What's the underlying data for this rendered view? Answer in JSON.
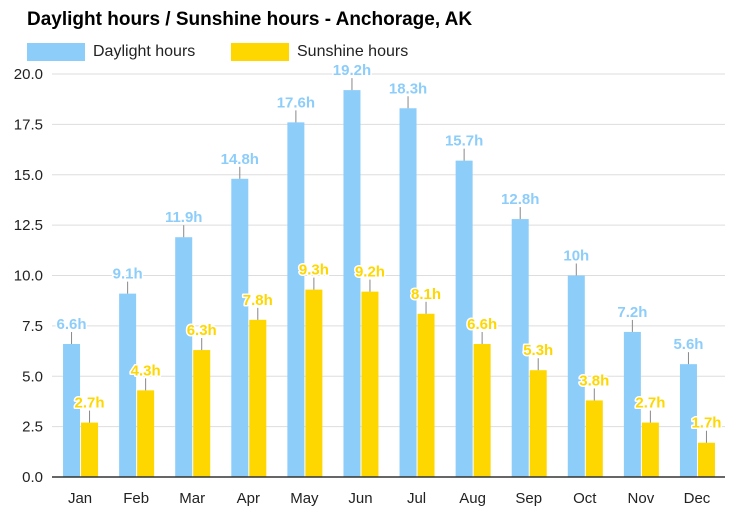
{
  "chart_data": {
    "type": "bar",
    "title": "Daylight hours / Sunshine hours - Anchorage, AK",
    "categories": [
      "Jan",
      "Feb",
      "Mar",
      "Apr",
      "May",
      "Jun",
      "Jul",
      "Aug",
      "Sep",
      "Oct",
      "Nov",
      "Dec"
    ],
    "series": [
      {
        "name": "Daylight hours",
        "color": "#8DCDFA",
        "values": [
          6.6,
          9.1,
          11.9,
          14.8,
          17.6,
          19.2,
          18.3,
          15.7,
          12.8,
          10,
          7.2,
          5.6
        ],
        "labels": [
          "6.6h",
          "9.1h",
          "11.9h",
          "14.8h",
          "17.6h",
          "19.2h",
          "18.3h",
          "15.7h",
          "12.8h",
          "10h",
          "7.2h",
          "5.6h"
        ]
      },
      {
        "name": "Sunshine hours",
        "color": "#FFD700",
        "values": [
          2.7,
          4.3,
          6.3,
          7.8,
          9.3,
          9.2,
          8.1,
          6.6,
          5.3,
          3.8,
          2.7,
          1.7
        ],
        "labels": [
          "2.7h",
          "4.3h",
          "6.3h",
          "7.8h",
          "9.3h",
          "9.2h",
          "8.1h",
          "6.6h",
          "5.3h",
          "3.8h",
          "2.7h",
          "1.7h"
        ]
      }
    ],
    "yticks": [
      "0.0",
      "2.5",
      "5.0",
      "7.5",
      "10.0",
      "12.5",
      "15.0",
      "17.5",
      "20.0"
    ],
    "ylim": [
      0,
      20
    ],
    "grid": true,
    "legend": "top-left"
  }
}
